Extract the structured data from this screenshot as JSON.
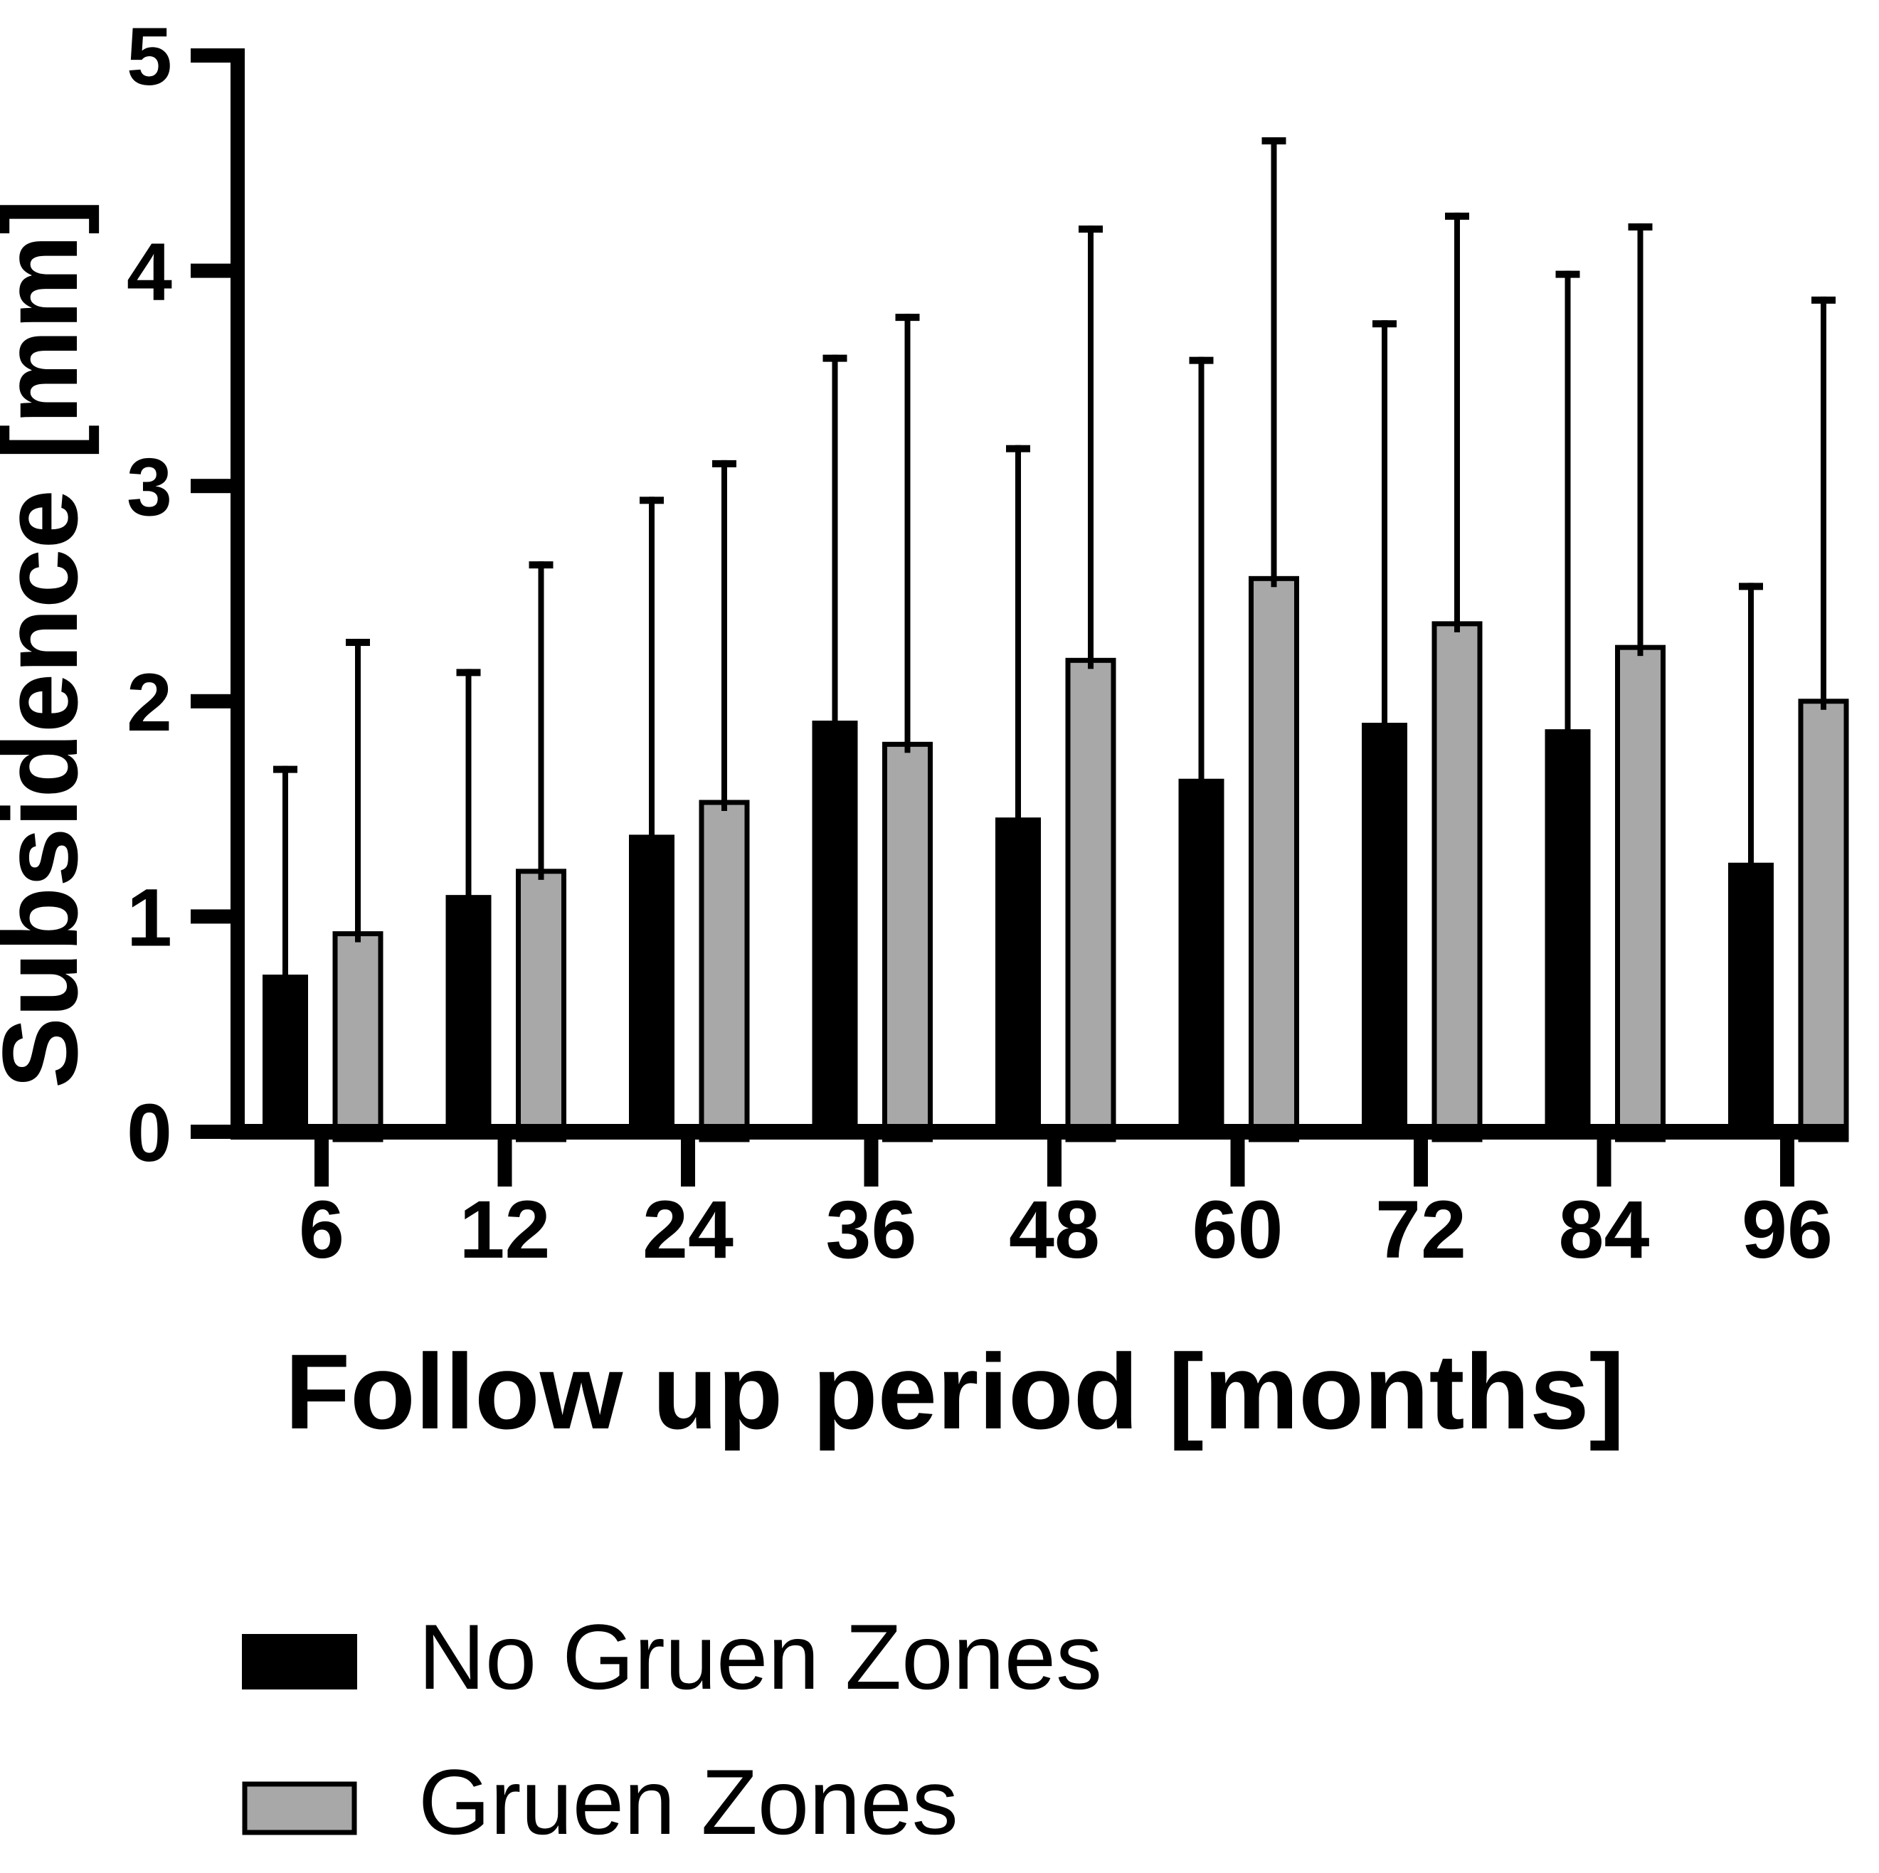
{
  "chart_data": {
    "type": "bar",
    "title": "",
    "ylabel": "Subsidence [mm]",
    "xlabel": "Follow up period [months]",
    "categories": [
      "6",
      "12",
      "24",
      "36",
      "48",
      "60",
      "72",
      "84",
      "96"
    ],
    "ylim": [
      0,
      5
    ],
    "y_ticks": [
      0,
      1,
      2,
      3,
      4,
      5
    ],
    "grid": false,
    "legend_position": "below-left",
    "error_bars": "upper-sd-whisker-with-cap",
    "series": [
      {
        "name": "No Gruen Zones",
        "color": "#000000",
        "border_color": "#000000",
        "values": [
          0.73,
          1.1,
          1.38,
          1.91,
          1.46,
          1.64,
          1.9,
          1.87,
          1.25
        ],
        "error_top": [
          1.7,
          2.15,
          2.95,
          3.61,
          3.19,
          3.6,
          3.77,
          4.0,
          2.55
        ]
      },
      {
        "name": "Gruen Zones",
        "color": "#A8A8A8",
        "border_color": "#000000",
        "values": [
          0.92,
          1.21,
          1.53,
          1.8,
          2.19,
          2.57,
          2.36,
          2.25,
          2.0
        ],
        "error_top": [
          2.29,
          2.65,
          3.12,
          3.8,
          4.21,
          4.62,
          4.27,
          4.22,
          3.88
        ]
      }
    ]
  }
}
